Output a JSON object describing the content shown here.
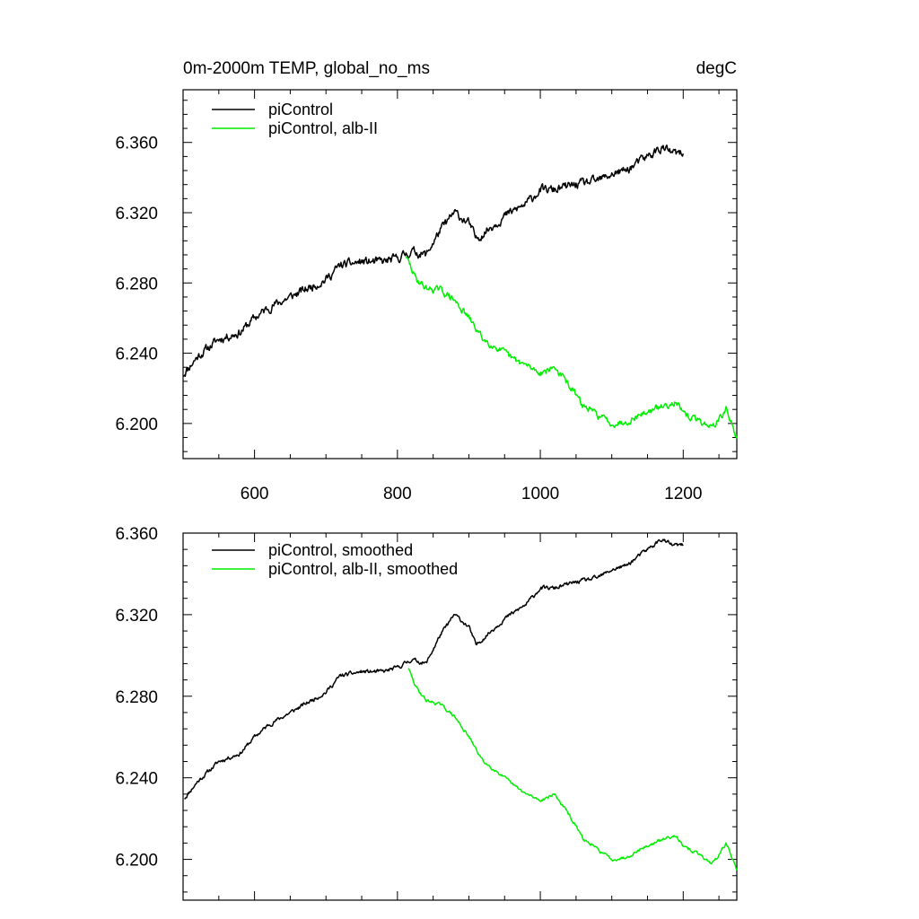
{
  "chart_data": [
    {
      "type": "line",
      "title_left": "0m-2000m TEMP, global_no_ms",
      "title_right": "degC",
      "xlim": [
        500,
        1275
      ],
      "ylim": [
        6.18,
        6.39
      ],
      "xticks": [
        600,
        800,
        1000,
        1200
      ],
      "xtick_labels": [
        "600",
        "800",
        "1000",
        "1200"
      ],
      "yticks": [
        6.2,
        6.24,
        6.28,
        6.32,
        6.36
      ],
      "ytick_labels": [
        "6.200",
        "6.240",
        "6.280",
        "6.320",
        "6.360"
      ],
      "legend_position": "top-left",
      "grid": false,
      "series": [
        {
          "name": "piControl",
          "color": "#000000",
          "noise": 0.004,
          "seed": 11,
          "x": [
            500,
            520,
            550,
            580,
            600,
            620,
            650,
            680,
            700,
            720,
            750,
            780,
            800,
            820,
            840,
            860,
            880,
            900,
            910,
            925,
            950,
            980,
            1000,
            1020,
            1050,
            1080,
            1100,
            1120,
            1150,
            1170,
            1185,
            1200
          ],
          "y": [
            6.228,
            6.238,
            6.248,
            6.252,
            6.26,
            6.266,
            6.272,
            6.278,
            6.282,
            6.29,
            6.292,
            6.292,
            6.294,
            6.298,
            6.296,
            6.31,
            6.32,
            6.314,
            6.305,
            6.31,
            6.318,
            6.325,
            6.333,
            6.333,
            6.336,
            6.338,
            6.342,
            6.344,
            6.352,
            6.357,
            6.354,
            6.353
          ]
        },
        {
          "name": "piControl, alb-II",
          "color": "#00ee00",
          "noise": 0.003,
          "seed": 29,
          "x": [
            812,
            825,
            840,
            860,
            880,
            900,
            920,
            940,
            960,
            980,
            1000,
            1020,
            1040,
            1060,
            1080,
            1100,
            1120,
            1140,
            1160,
            1180,
            1190,
            1200,
            1220,
            1240,
            1250,
            1260,
            1275
          ],
          "y": [
            6.295,
            6.283,
            6.277,
            6.276,
            6.27,
            6.26,
            6.248,
            6.243,
            6.237,
            6.233,
            6.229,
            6.232,
            6.222,
            6.21,
            6.205,
            6.2,
            6.201,
            6.205,
            6.208,
            6.211,
            6.213,
            6.205,
            6.202,
            6.198,
            6.202,
            6.208,
            6.192
          ]
        }
      ]
    },
    {
      "type": "line",
      "xlim": [
        500,
        1275
      ],
      "ylim": [
        6.18,
        6.36
      ],
      "xticks": [
        600,
        800,
        1000,
        1200
      ],
      "yticks": [
        6.2,
        6.24,
        6.28,
        6.32,
        6.36
      ],
      "ytick_labels": [
        "6.200",
        "6.240",
        "6.280",
        "6.320",
        "6.360"
      ],
      "legend_position": "top-left",
      "grid": false,
      "series": [
        {
          "name": "piControl, smoothed",
          "color": "#000000",
          "noise": 0.0016,
          "seed": 11,
          "x": [
            502,
            520,
            550,
            580,
            600,
            620,
            650,
            680,
            700,
            720,
            750,
            780,
            800,
            820,
            840,
            860,
            880,
            900,
            910,
            925,
            950,
            980,
            1000,
            1020,
            1050,
            1080,
            1100,
            1120,
            1150,
            1170,
            1185,
            1200
          ],
          "y": [
            6.23,
            6.238,
            6.248,
            6.252,
            6.26,
            6.266,
            6.272,
            6.278,
            6.282,
            6.29,
            6.292,
            6.292,
            6.294,
            6.298,
            6.296,
            6.31,
            6.32,
            6.314,
            6.305,
            6.31,
            6.318,
            6.325,
            6.333,
            6.333,
            6.336,
            6.338,
            6.342,
            6.344,
            6.352,
            6.357,
            6.354,
            6.354
          ]
        },
        {
          "name": "piControl, alb-II, smoothed",
          "color": "#00ee00",
          "noise": 0.0012,
          "seed": 29,
          "x": [
            815,
            825,
            840,
            860,
            880,
            900,
            920,
            940,
            960,
            980,
            1000,
            1020,
            1040,
            1060,
            1080,
            1100,
            1120,
            1140,
            1160,
            1180,
            1190,
            1200,
            1220,
            1240,
            1250,
            1260,
            1275
          ],
          "y": [
            6.294,
            6.285,
            6.278,
            6.276,
            6.27,
            6.26,
            6.248,
            6.243,
            6.237,
            6.232,
            6.229,
            6.232,
            6.222,
            6.21,
            6.205,
            6.2,
            6.201,
            6.205,
            6.208,
            6.211,
            6.212,
            6.206,
            6.203,
            6.198,
            6.202,
            6.208,
            6.195
          ]
        }
      ]
    }
  ]
}
